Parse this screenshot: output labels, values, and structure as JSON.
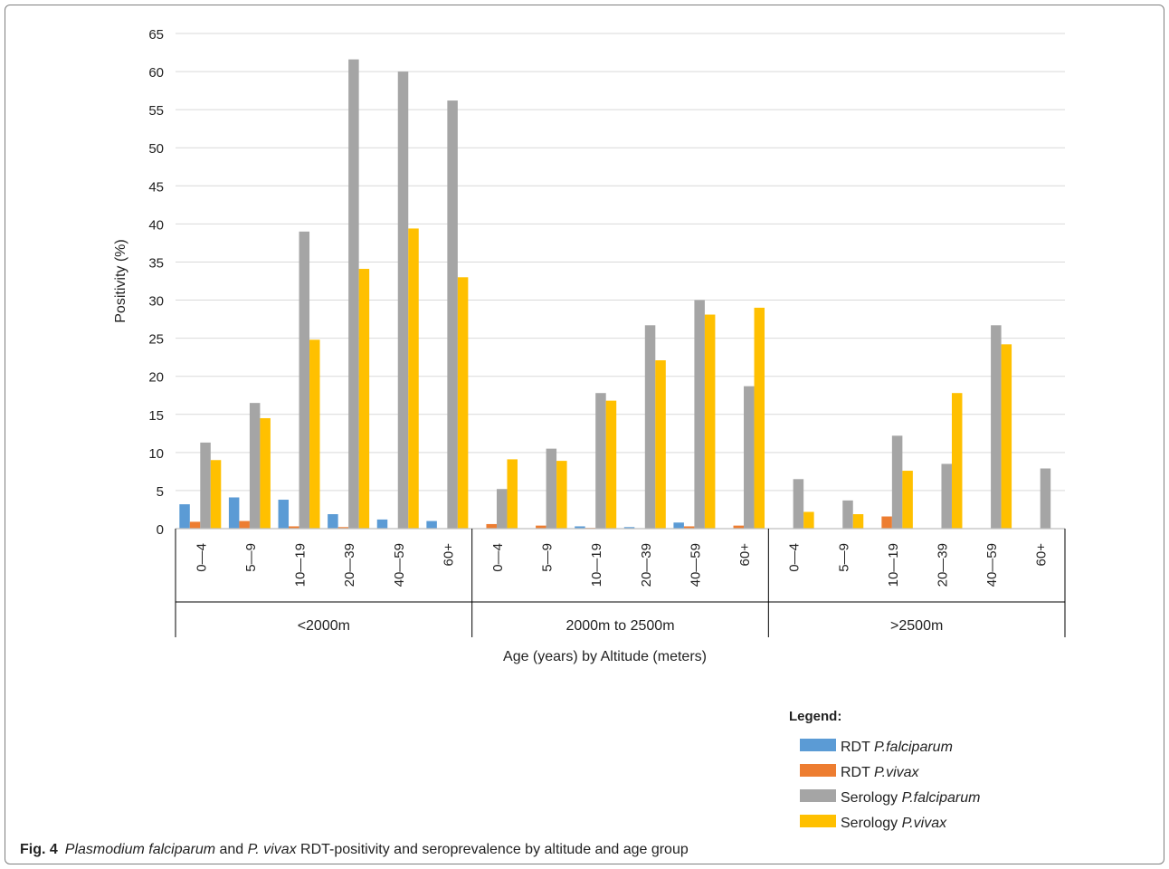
{
  "chart_data": {
    "type": "bar",
    "ylabel": "Positivity (%)",
    "xlabel": "Age (years) by Altitude (meters)",
    "ylim": [
      0,
      65
    ],
    "yticks": [
      0,
      5,
      10,
      15,
      20,
      25,
      30,
      35,
      40,
      45,
      50,
      55,
      60,
      65
    ],
    "grid": true,
    "legend_position": "bottom-right",
    "groups": [
      {
        "label": "<2000m",
        "categories": [
          "0—4",
          "5—9",
          "10—19",
          "20—39",
          "40—59",
          "60+"
        ]
      },
      {
        "label": "2000m to 2500m",
        "categories": [
          "0—4",
          "5—9",
          "10—19",
          "20—39",
          "40—59",
          "60+"
        ]
      },
      {
        "label": ">2500m",
        "categories": [
          "0—4",
          "5—9",
          "10—19",
          "20—39",
          "40—59",
          "60+"
        ]
      }
    ],
    "series": [
      {
        "name_prefix": "RDT",
        "name_italic": "P.falciparum",
        "color": "#5B9BD5",
        "values": [
          3.2,
          4.1,
          3.8,
          1.9,
          1.2,
          1.0,
          0,
          0,
          0.3,
          0.2,
          0.8,
          0,
          0,
          0,
          0,
          0,
          0,
          0
        ]
      },
      {
        "name_prefix": "RDT",
        "name_italic": "P.vivax",
        "color": "#ED7D31",
        "values": [
          0.9,
          1.0,
          0.3,
          0.2,
          0,
          0,
          0.6,
          0.4,
          0.1,
          0,
          0.3,
          0.4,
          0,
          0,
          1.6,
          0,
          0,
          0
        ]
      },
      {
        "name_prefix": "Serology",
        "name_italic": "P.falciparum",
        "color": "#A5A5A5",
        "values": [
          11.3,
          16.5,
          39.0,
          61.6,
          60.0,
          56.2,
          5.2,
          10.5,
          17.8,
          26.7,
          30.0,
          18.7,
          6.5,
          3.7,
          12.2,
          8.5,
          26.7,
          7.9
        ]
      },
      {
        "name_prefix": "Serology",
        "name_italic": "P.vivax",
        "color": "#FFC000",
        "values": [
          9.0,
          14.5,
          24.8,
          34.1,
          39.4,
          33.0,
          9.1,
          8.9,
          16.8,
          22.1,
          28.1,
          29.0,
          2.2,
          1.9,
          7.6,
          17.8,
          24.2,
          0
        ]
      }
    ],
    "legend_title": "Legend:"
  },
  "caption": {
    "label": "Fig. 4",
    "italic_1": "Plasmodium falciparum",
    "text_1": " and ",
    "italic_2": "P. vivax",
    "text_2": " RDT-positivity and seroprevalence by altitude and age group"
  }
}
